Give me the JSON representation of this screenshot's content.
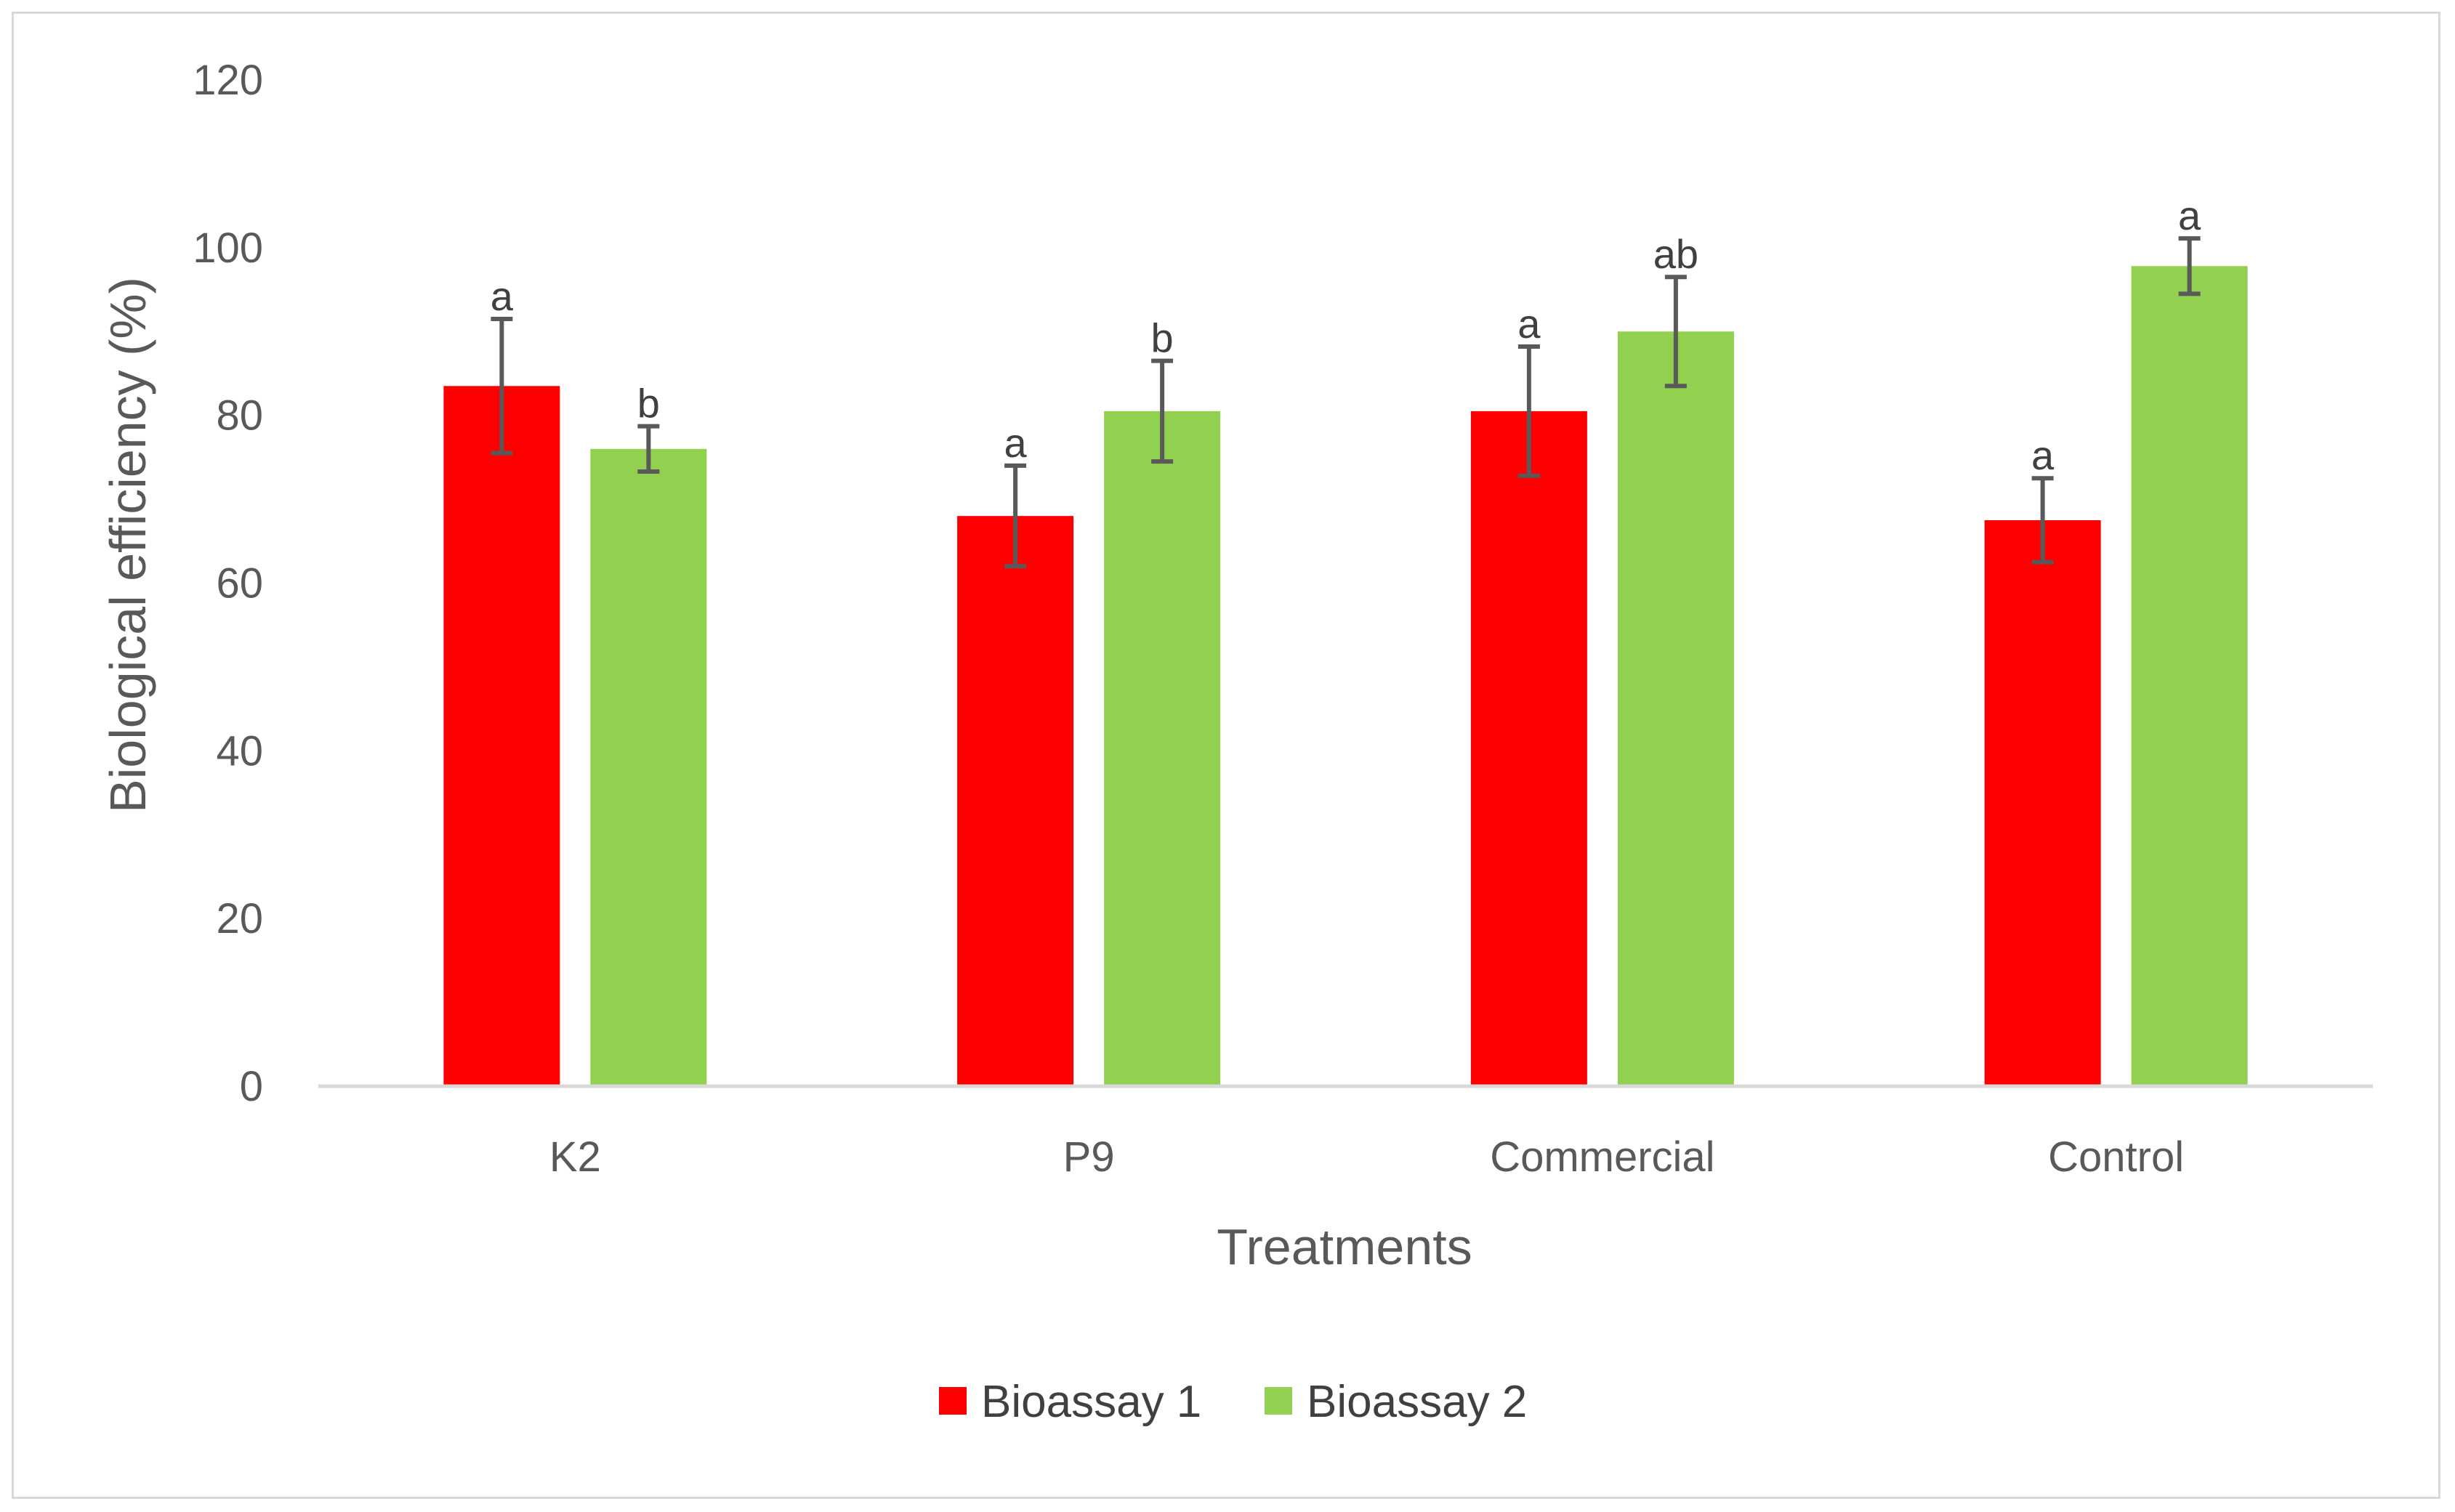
{
  "chart_data": {
    "type": "bar",
    "title": "",
    "xlabel": "Treatments",
    "ylabel": "Biological efficiency (%)",
    "ylim": [
      0,
      120
    ],
    "yticks": [
      0,
      20,
      40,
      60,
      80,
      100,
      120
    ],
    "grid": false,
    "legend_position": "bottom",
    "categories": [
      "K2",
      "P9",
      "Commercial",
      "Control"
    ],
    "series": [
      {
        "name": "Bioassay 1",
        "color": "#ff0000",
        "values": [
          83.5,
          68.0,
          80.5,
          67.5
        ],
        "errors": [
          8.0,
          6.0,
          7.7,
          5.0
        ],
        "significance": [
          "a",
          "a",
          "a",
          "a"
        ]
      },
      {
        "name": "Bioassay 2",
        "color": "#92d050",
        "values": [
          76.0,
          80.5,
          90.0,
          97.8
        ],
        "errors": [
          2.7,
          6.0,
          6.5,
          3.3
        ],
        "significance": [
          "b",
          "b",
          "ab",
          "a"
        ]
      }
    ]
  }
}
